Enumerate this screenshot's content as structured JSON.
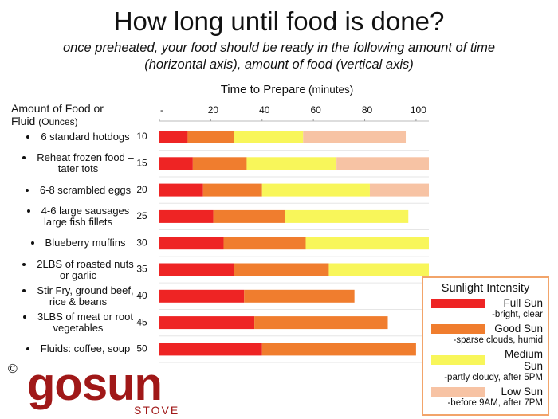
{
  "chart_data": {
    "type": "stacked-barh",
    "title": "How long until food is done?",
    "subtitle": "once preheated, your food should be ready in the following amount of time (horizontal axis), amount of food (vertical axis)",
    "x_label": "Time to Prepare",
    "x_unit": "(minutes)",
    "y_label": "Amount of Food or Fluid",
    "y_unit": "(Ounces)",
    "categories": [
      "6 standard hotdogs",
      "Reheat frozen food – tater tots",
      "6-8 scrambled eggs",
      "4-6 large sausages large fish fillets",
      "Blueberry muffins",
      "2LBS of roasted nuts or garlic",
      "Stir Fry, ground beef, rice & beans",
      "3LBS of meat or root vegetables",
      "Fluids: coffee, soup"
    ],
    "amounts": [
      10,
      15,
      20,
      25,
      30,
      35,
      40,
      45,
      50
    ],
    "xlim": [
      0,
      105
    ],
    "xticks": [
      {
        "value": 0,
        "label": "-"
      },
      20,
      40,
      60,
      80,
      100
    ],
    "legend_title": "Sunlight Intensity",
    "legend": "lower right",
    "series": [
      {
        "name": "Full Sun",
        "description": "-bright, clear",
        "color": "#ee2424",
        "values": [
          11,
          13,
          17,
          21,
          25,
          29,
          33,
          37,
          40
        ]
      },
      {
        "name": "Good Sun",
        "description": "-sparse clouds, humid",
        "color": "#f07d2e",
        "values": [
          18,
          21,
          23,
          28,
          32,
          37,
          43,
          52,
          60
        ]
      },
      {
        "name": "Medium Sun",
        "description": "-partly cloudy, after 5PM",
        "color": "#f8f65a",
        "values": [
          27,
          35,
          42,
          48,
          48,
          39,
          null,
          null,
          null
        ]
      },
      {
        "name": "Low Sun",
        "description": "-before 9AM, after 7PM",
        "color": "#f7c3a4",
        "values": [
          40,
          36,
          23,
          null,
          null,
          null,
          null,
          null,
          null
        ]
      }
    ],
    "logo": {
      "copyright": "©",
      "brand": "gosun",
      "sub": "STOVE"
    }
  }
}
